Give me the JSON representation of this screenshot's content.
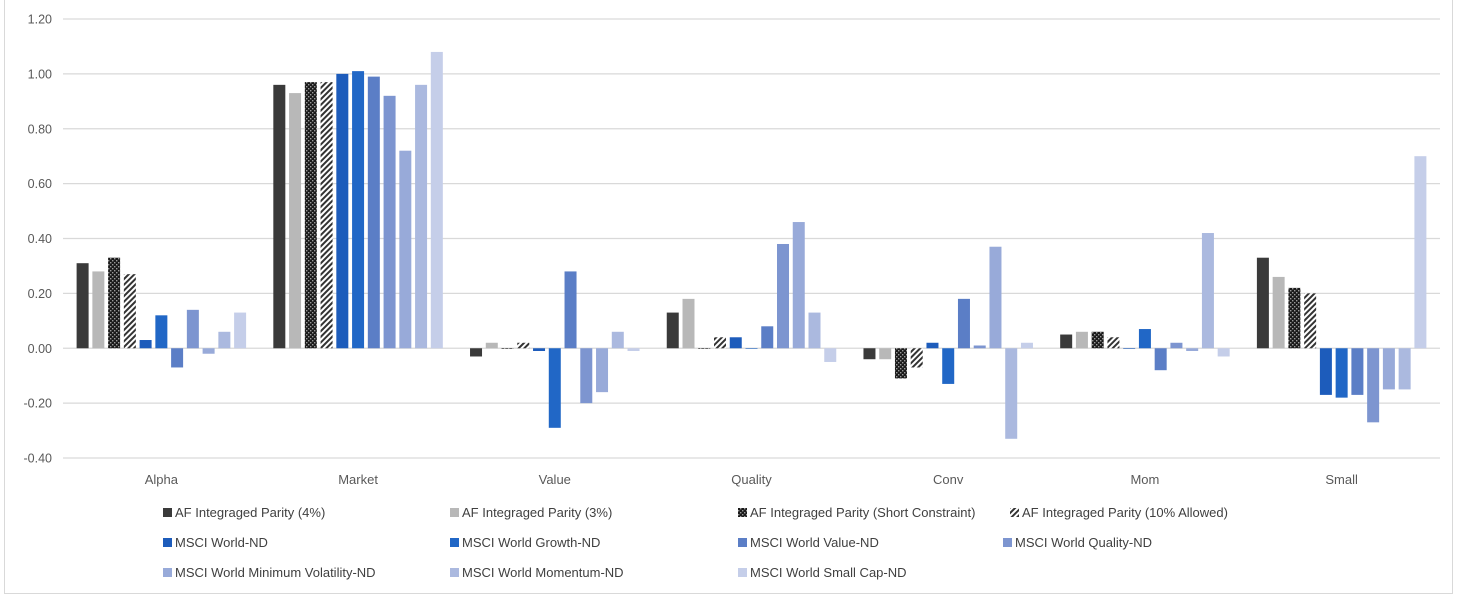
{
  "chart_data": {
    "type": "bar",
    "title": "",
    "xlabel": "",
    "ylabel": "",
    "ylim": [
      -0.4,
      1.2
    ],
    "yticks": [
      "1.20",
      "1.00",
      "0.80",
      "0.60",
      "0.40",
      "0.20",
      "0.00",
      "-0.20",
      "-0.40"
    ],
    "ytick_values": [
      1.2,
      1.0,
      0.8,
      0.6,
      0.4,
      0.2,
      0.0,
      -0.2,
      -0.4
    ],
    "grid": true,
    "legend_position": "bottom",
    "categories": [
      "Alpha",
      "Market",
      "Value",
      "Quality",
      "Conv",
      "Mom",
      "Small"
    ],
    "series": [
      {
        "name": "AF Integraged Parity (4%)",
        "color": "#3a3a3a",
        "pattern": "solid",
        "values": [
          0.31,
          0.96,
          -0.03,
          0.13,
          -0.04,
          0.05,
          0.33
        ]
      },
      {
        "name": "AF Integraged Parity (3%)",
        "color": "#b8b8b8",
        "pattern": "solid",
        "values": [
          0.28,
          0.93,
          0.02,
          0.18,
          -0.04,
          0.06,
          0.26
        ]
      },
      {
        "name": "AF Integraged Parity (Short Constraint)",
        "color": "#1a1a1a",
        "pattern": "dots",
        "values": [
          0.33,
          0.97,
          0.0,
          0.0,
          -0.11,
          0.06,
          0.22
        ]
      },
      {
        "name": "AF Integraged Parity (10% Allowed)",
        "color": "#333333",
        "pattern": "diagonal",
        "values": [
          0.27,
          0.97,
          0.02,
          0.04,
          -0.07,
          0.04,
          0.2
        ]
      },
      {
        "name": "MSCI World-ND",
        "color": "#1d5cbb",
        "pattern": "solid",
        "values": [
          0.03,
          1.0,
          -0.01,
          0.04,
          0.02,
          0.0,
          -0.17
        ]
      },
      {
        "name": "MSCI World Growth-ND",
        "color": "#2167c6",
        "pattern": "solid",
        "values": [
          0.12,
          1.01,
          -0.29,
          0.0,
          -0.13,
          0.07,
          -0.18
        ]
      },
      {
        "name": "MSCI World Value-ND",
        "color": "#5b7ec6",
        "pattern": "solid",
        "values": [
          -0.07,
          0.99,
          0.28,
          0.08,
          0.18,
          -0.08,
          -0.17
        ]
      },
      {
        "name": "MSCI World Quality-ND",
        "color": "#7d95d0",
        "pattern": "solid",
        "values": [
          0.14,
          0.92,
          -0.2,
          0.38,
          0.01,
          0.02,
          -0.27
        ]
      },
      {
        "name": "MSCI World Minimum Volatility-ND",
        "color": "#98aad9",
        "pattern": "solid",
        "values": [
          -0.02,
          0.72,
          -0.16,
          0.46,
          0.37,
          -0.01,
          -0.15
        ]
      },
      {
        "name": "MSCI World Momentum-ND",
        "color": "#abb9df",
        "pattern": "solid",
        "values": [
          0.06,
          0.96,
          0.06,
          0.13,
          -0.33,
          0.42,
          -0.15
        ]
      },
      {
        "name": "MSCI World Small Cap-ND",
        "color": "#c5cee9",
        "pattern": "solid",
        "values": [
          0.13,
          1.08,
          -0.01,
          -0.05,
          0.02,
          -0.03,
          0.7
        ]
      }
    ]
  }
}
